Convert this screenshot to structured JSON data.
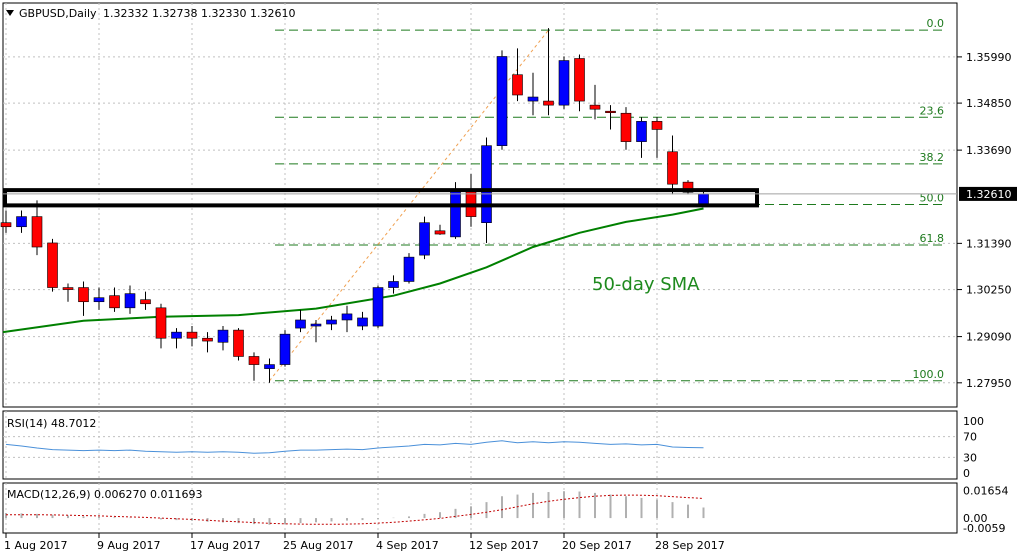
{
  "header": {
    "symbol_text": "GBPUSD,Daily",
    "ohlc_text": "1.32332 1.32738 1.32330 1.32610"
  },
  "chart_data": [
    {
      "type": "candlestick",
      "symbol": "GBPUSD",
      "timeframe": "Daily",
      "ohlc_last": {
        "open": 1.32332,
        "high": 1.32738,
        "low": 1.3233,
        "close": 1.3261
      },
      "ylim": [
        1.276,
        1.369
      ],
      "y_ticks": [
        "1.35990",
        "1.34850",
        "1.33690",
        "1.32610",
        "1.31390",
        "1.30250",
        "1.29090",
        "1.27950"
      ],
      "current_price_label": "1.32610",
      "x_tick_labels": [
        "1 Aug 2017",
        "9 Aug 2017",
        "17 Aug 2017",
        "25 Aug 2017",
        "4 Sep 2017",
        "12 Sep 2017",
        "20 Sep 2017",
        "28 Sep 2017"
      ],
      "x_tick_bar_index": [
        0,
        6,
        12,
        18,
        24,
        30,
        36,
        42
      ],
      "candles": [
        {
          "o": 1.319,
          "h": 1.322,
          "l": 1.3165,
          "c": 1.318
        },
        {
          "o": 1.318,
          "h": 1.322,
          "l": 1.3165,
          "c": 1.3205
        },
        {
          "o": 1.3205,
          "h": 1.3245,
          "l": 1.311,
          "c": 1.313
        },
        {
          "o": 1.314,
          "h": 1.315,
          "l": 1.302,
          "c": 1.303
        },
        {
          "o": 1.303,
          "h": 1.304,
          "l": 1.2995,
          "c": 1.3025
        },
        {
          "o": 1.303,
          "h": 1.3045,
          "l": 1.296,
          "c": 1.2995
        },
        {
          "o": 1.2995,
          "h": 1.303,
          "l": 1.2975,
          "c": 1.3005
        },
        {
          "o": 1.301,
          "h": 1.303,
          "l": 1.297,
          "c": 1.298
        },
        {
          "o": 1.298,
          "h": 1.3035,
          "l": 1.2965,
          "c": 1.3015
        },
        {
          "o": 1.3,
          "h": 1.302,
          "l": 1.2975,
          "c": 1.299
        },
        {
          "o": 1.298,
          "h": 1.299,
          "l": 1.288,
          "c": 1.2905
        },
        {
          "o": 1.2905,
          "h": 1.293,
          "l": 1.288,
          "c": 1.292
        },
        {
          "o": 1.292,
          "h": 1.2935,
          "l": 1.2885,
          "c": 1.2905
        },
        {
          "o": 1.2905,
          "h": 1.292,
          "l": 1.287,
          "c": 1.2898
        },
        {
          "o": 1.2895,
          "h": 1.2935,
          "l": 1.2875,
          "c": 1.2925
        },
        {
          "o": 1.2925,
          "h": 1.293,
          "l": 1.285,
          "c": 1.286
        },
        {
          "o": 1.286,
          "h": 1.287,
          "l": 1.28,
          "c": 1.284
        },
        {
          "o": 1.283,
          "h": 1.2855,
          "l": 1.2795,
          "c": 1.284
        },
        {
          "o": 1.284,
          "h": 1.2925,
          "l": 1.2835,
          "c": 1.2915
        },
        {
          "o": 1.293,
          "h": 1.2975,
          "l": 1.292,
          "c": 1.295
        },
        {
          "o": 1.2935,
          "h": 1.295,
          "l": 1.2895,
          "c": 1.294
        },
        {
          "o": 1.294,
          "h": 1.296,
          "l": 1.2925,
          "c": 1.295
        },
        {
          "o": 1.295,
          "h": 1.2985,
          "l": 1.292,
          "c": 1.2965
        },
        {
          "o": 1.2935,
          "h": 1.297,
          "l": 1.2925,
          "c": 1.2955
        },
        {
          "o": 1.2935,
          "h": 1.3035,
          "l": 1.293,
          "c": 1.303
        },
        {
          "o": 1.303,
          "h": 1.306,
          "l": 1.3015,
          "c": 1.3045
        },
        {
          "o": 1.3045,
          "h": 1.3115,
          "l": 1.304,
          "c": 1.3105
        },
        {
          "o": 1.311,
          "h": 1.3205,
          "l": 1.31,
          "c": 1.319
        },
        {
          "o": 1.317,
          "h": 1.3185,
          "l": 1.316,
          "c": 1.3162
        },
        {
          "o": 1.3155,
          "h": 1.329,
          "l": 1.315,
          "c": 1.327
        },
        {
          "o": 1.327,
          "h": 1.331,
          "l": 1.318,
          "c": 1.3205
        },
        {
          "o": 1.319,
          "h": 1.34,
          "l": 1.314,
          "c": 1.338
        },
        {
          "o": 1.338,
          "h": 1.3615,
          "l": 1.337,
          "c": 1.36
        },
        {
          "o": 1.3555,
          "h": 1.362,
          "l": 1.349,
          "c": 1.3505
        },
        {
          "o": 1.349,
          "h": 1.356,
          "l": 1.3455,
          "c": 1.35
        },
        {
          "o": 1.349,
          "h": 1.367,
          "l": 1.3455,
          "c": 1.348
        },
        {
          "o": 1.348,
          "h": 1.36,
          "l": 1.347,
          "c": 1.359
        },
        {
          "o": 1.3595,
          "h": 1.3605,
          "l": 1.3465,
          "c": 1.349
        },
        {
          "o": 1.348,
          "h": 1.353,
          "l": 1.3445,
          "c": 1.347
        },
        {
          "o": 1.3465,
          "h": 1.348,
          "l": 1.342,
          "c": 1.3462
        },
        {
          "o": 1.346,
          "h": 1.3475,
          "l": 1.337,
          "c": 1.339
        },
        {
          "o": 1.339,
          "h": 1.345,
          "l": 1.335,
          "c": 1.344
        },
        {
          "o": 1.344,
          "h": 1.345,
          "l": 1.335,
          "c": 1.342
        },
        {
          "o": 1.3365,
          "h": 1.3405,
          "l": 1.326,
          "c": 1.3285
        },
        {
          "o": 1.329,
          "h": 1.3295,
          "l": 1.326,
          "c": 1.3265
        },
        {
          "o": 1.32332,
          "h": 1.32738,
          "l": 1.3233,
          "c": 1.3261
        }
      ],
      "sma50": {
        "label": "50-day SMA",
        "points": [
          [
            0,
            1.292
          ],
          [
            5,
            1.2948
          ],
          [
            10,
            1.2958
          ],
          [
            15,
            1.2962
          ],
          [
            20,
            1.2978
          ],
          [
            25,
            1.301
          ],
          [
            28,
            1.304
          ],
          [
            31,
            1.308
          ],
          [
            34,
            1.313
          ],
          [
            37,
            1.3165
          ],
          [
            40,
            1.3192
          ],
          [
            43,
            1.321
          ],
          [
            45,
            1.3225
          ]
        ]
      },
      "fibonacci": {
        "levels": [
          {
            "label": "0.0",
            "price": 1.3665
          },
          {
            "label": "23.6",
            "price": 1.345
          },
          {
            "label": "38.2",
            "price": 1.3335
          },
          {
            "label": "50.0",
            "price": 1.3235
          },
          {
            "label": "61.8",
            "price": 1.3135
          },
          {
            "label": "100.0",
            "price": 1.28
          }
        ],
        "trend_line": {
          "from": [
            17,
            1.28
          ],
          "to": [
            35,
            1.3665
          ]
        }
      },
      "highlight_zone": {
        "price_top": 1.3258,
        "price_bottom": 1.3245
      },
      "colors": {
        "bull": "#0000ff",
        "bear": "#ff0000",
        "sma": "#008000",
        "fib": "#1e7a1e",
        "trend": "#f0a050",
        "grid": "#c0c0c0"
      }
    },
    {
      "type": "line",
      "name": "RSI(14)",
      "label_text": "RSI(14) 48.7012",
      "current": 48.7012,
      "ylim": [
        0,
        100
      ],
      "y_ticks": [
        "100",
        "70",
        "30",
        "0"
      ],
      "values": [
        55,
        52,
        48,
        45,
        44,
        43,
        44,
        43,
        44,
        42,
        41,
        40,
        41,
        40,
        41,
        40,
        38,
        39,
        42,
        44,
        44,
        45,
        46,
        45,
        48,
        50,
        52,
        55,
        54,
        57,
        55,
        59,
        62,
        58,
        60,
        58,
        60,
        59,
        57,
        55,
        56,
        54,
        55,
        50,
        49,
        48.7
      ]
    },
    {
      "type": "bar_line",
      "name": "MACD(12,26,9)",
      "label_text": "MACD(12,26,9) 0.006270 0.011693",
      "macd_current": 0.00627,
      "signal_current": 0.011693,
      "ylim": [
        -0.0065,
        0.0185
      ],
      "y_ticks": [
        "0.01654",
        "0.00",
        "-0.0059"
      ],
      "macd": [
        0.003,
        0.0028,
        0.0025,
        0.002,
        0.0015,
        0.001,
        0.0008,
        0.0005,
        0.0002,
        0.0,
        -0.0008,
        -0.0012,
        -0.0016,
        -0.0022,
        -0.0026,
        -0.003,
        -0.0036,
        -0.004,
        -0.0035,
        -0.003,
        -0.0025,
        -0.002,
        -0.0015,
        -0.0012,
        -0.0005,
        0.0002,
        0.001,
        0.0025,
        0.0035,
        0.0055,
        0.007,
        0.0095,
        0.013,
        0.014,
        0.015,
        0.0155,
        0.016,
        0.0158,
        0.015,
        0.014,
        0.013,
        0.012,
        0.011,
        0.0095,
        0.008,
        0.0063
      ],
      "signal": [
        0.002,
        0.002,
        0.002,
        0.0019,
        0.0017,
        0.0015,
        0.0013,
        0.001,
        0.0007,
        0.0004,
        0.0,
        -0.0004,
        -0.0008,
        -0.0013,
        -0.0018,
        -0.0022,
        -0.0027,
        -0.0031,
        -0.0034,
        -0.0036,
        -0.0037,
        -0.0037,
        -0.0036,
        -0.0034,
        -0.003,
        -0.0025,
        -0.0018,
        -0.001,
        -0.0002,
        0.001,
        0.0022,
        0.0035,
        0.005,
        0.0068,
        0.0085,
        0.01,
        0.0112,
        0.0122,
        0.013,
        0.0135,
        0.0137,
        0.0136,
        0.0133,
        0.0128,
        0.0122,
        0.0117
      ]
    }
  ],
  "annotations": {
    "sma_label": "50-day SMA"
  }
}
